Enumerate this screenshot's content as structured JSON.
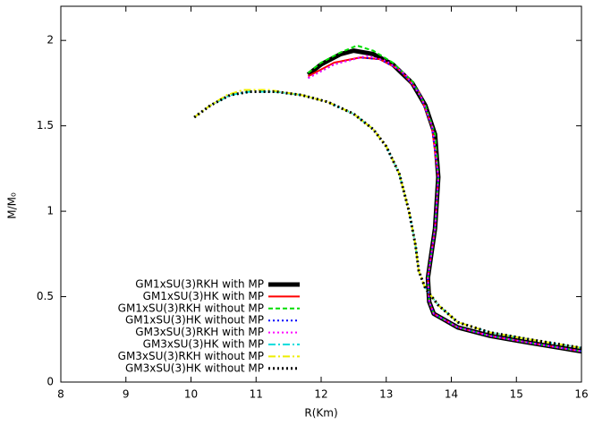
{
  "chart_data": {
    "type": "line",
    "xlabel": "R(Km)",
    "ylabel": "M/M₀",
    "xlim": [
      8,
      16
    ],
    "ylim": [
      0,
      2.2
    ],
    "xticks": [
      8,
      9,
      10,
      11,
      12,
      13,
      14,
      15,
      16
    ],
    "yticks": [
      0,
      0.5,
      1,
      1.5,
      2
    ],
    "series": [
      {
        "name": "GM1xSU(3)RKH with MP",
        "color": "#000000",
        "dash": "solid",
        "width": 5,
        "x": [
          11.8,
          12.0,
          12.3,
          12.5,
          12.8,
          13.1,
          13.4,
          13.6,
          13.75,
          13.8,
          13.75,
          13.64,
          13.66,
          13.73,
          14.1,
          14.6,
          15.2,
          16
        ],
        "values": [
          1.8,
          1.86,
          1.92,
          1.94,
          1.92,
          1.86,
          1.75,
          1.62,
          1.45,
          1.2,
          0.9,
          0.61,
          0.47,
          0.4,
          0.32,
          0.27,
          0.23,
          0.18
        ]
      },
      {
        "name": "GM1xSU(3)HK with MP",
        "color": "#ff0000",
        "dash": "solid",
        "width": 2,
        "x": [
          11.8,
          12.2,
          12.6,
          12.9,
          13.2,
          13.5,
          13.7,
          13.8,
          13.75,
          13.64,
          13.66,
          13.73,
          14.1,
          14.6,
          15.2,
          16
        ],
        "values": [
          1.79,
          1.87,
          1.9,
          1.89,
          1.83,
          1.7,
          1.5,
          1.2,
          0.9,
          0.61,
          0.47,
          0.4,
          0.32,
          0.27,
          0.23,
          0.18
        ]
      },
      {
        "name": "GM1xSU(3)RKH without MP",
        "color": "#00dd00",
        "dash": "dashed",
        "width": 2,
        "x": [
          11.8,
          12.0,
          12.3,
          12.55,
          12.8,
          13.1,
          13.4,
          13.6,
          13.75,
          13.8,
          13.75,
          13.64,
          13.66,
          13.73,
          14.1,
          14.6,
          15.2,
          16
        ],
        "values": [
          1.81,
          1.87,
          1.93,
          1.97,
          1.94,
          1.87,
          1.76,
          1.62,
          1.45,
          1.2,
          0.9,
          0.61,
          0.47,
          0.4,
          0.32,
          0.27,
          0.23,
          0.18
        ]
      },
      {
        "name": "GM1xSU(3)HK without MP",
        "color": "#0000ff",
        "dash": "dotted",
        "width": 2,
        "x": [
          11.8,
          12.2,
          12.6,
          12.9,
          13.2,
          13.5,
          13.7,
          13.8,
          13.75,
          13.64,
          13.66,
          13.73,
          14.1,
          14.6,
          15.2,
          16
        ],
        "values": [
          1.78,
          1.86,
          1.9,
          1.89,
          1.83,
          1.7,
          1.5,
          1.2,
          0.9,
          0.61,
          0.47,
          0.4,
          0.32,
          0.27,
          0.23,
          0.18
        ]
      },
      {
        "name": "GM3xSU(3)RKH with MP",
        "color": "#ff00ff",
        "dash": "dotted",
        "width": 2,
        "x": [
          11.8,
          12.2,
          12.7,
          13.0,
          13.3,
          13.55,
          13.72,
          13.8,
          13.75,
          13.64,
          13.66,
          13.73,
          14.1,
          14.6,
          15.2,
          16
        ],
        "values": [
          1.78,
          1.86,
          1.91,
          1.88,
          1.8,
          1.66,
          1.48,
          1.2,
          0.9,
          0.61,
          0.47,
          0.4,
          0.32,
          0.27,
          0.23,
          0.18
        ]
      },
      {
        "name": "GM3xSU(3)HK with MP",
        "color": "#00dddd",
        "dash": "dashdot",
        "width": 2,
        "x": [
          10.05,
          10.3,
          10.6,
          10.9,
          11.3,
          11.7,
          12.1,
          12.5,
          12.8,
          13.0,
          13.2,
          13.35,
          13.45,
          13.5,
          13.6,
          13.8,
          14.1,
          14.6,
          15.2,
          16
        ],
        "values": [
          1.55,
          1.62,
          1.68,
          1.7,
          1.7,
          1.68,
          1.64,
          1.57,
          1.48,
          1.38,
          1.22,
          1.0,
          0.8,
          0.65,
          0.55,
          0.45,
          0.35,
          0.29,
          0.25,
          0.2
        ]
      },
      {
        "name": "GM3xSU(3)RKH without MP",
        "color": "#eeee00",
        "dash": "dashdot",
        "width": 2,
        "x": [
          10.05,
          10.3,
          10.55,
          10.8,
          11.2,
          11.7,
          12.1,
          12.5,
          12.8,
          13.0,
          13.2,
          13.35,
          13.45,
          13.5,
          13.6,
          13.8,
          14.1,
          14.6,
          15.2,
          16
        ],
        "values": [
          1.55,
          1.62,
          1.68,
          1.71,
          1.71,
          1.68,
          1.64,
          1.57,
          1.48,
          1.38,
          1.22,
          1.0,
          0.8,
          0.65,
          0.55,
          0.45,
          0.35,
          0.29,
          0.25,
          0.2
        ]
      },
      {
        "name": "GM3xSU(3)HK without MP",
        "color": "#000000",
        "dash": "dotted",
        "width": 3,
        "x": [
          10.05,
          10.3,
          10.6,
          10.9,
          11.3,
          11.7,
          12.1,
          12.5,
          12.8,
          13.0,
          13.2,
          13.35,
          13.45,
          13.5,
          13.6,
          13.8,
          14.1,
          14.6,
          15.2,
          16
        ],
        "values": [
          1.55,
          1.62,
          1.68,
          1.7,
          1.7,
          1.68,
          1.64,
          1.57,
          1.48,
          1.38,
          1.22,
          1.0,
          0.8,
          0.65,
          0.55,
          0.45,
          0.35,
          0.29,
          0.25,
          0.2
        ]
      }
    ]
  }
}
